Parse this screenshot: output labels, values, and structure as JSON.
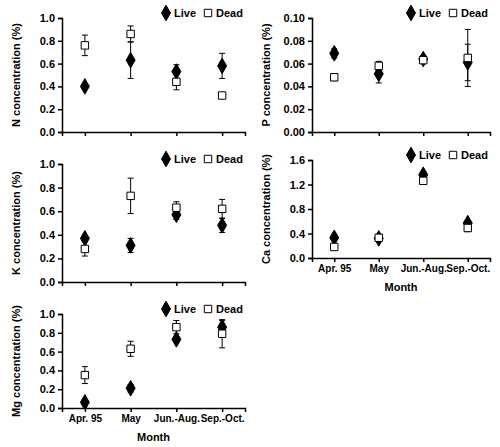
{
  "chart_data": [
    {
      "type": "scatter",
      "y_label": "N concentration (%)",
      "categories": [
        "Apr. 95",
        "May",
        "Jun.-Aug.",
        "Sep.-Oct."
      ],
      "ylim": [
        0,
        1.0
      ],
      "yticks": [
        {
          "value": 0,
          "label": "0.0"
        },
        0.2,
        0.4,
        0.6,
        0.8,
        {
          "value": 1.0,
          "label": "1.0"
        }
      ],
      "tick_labels": "y",
      "legend": "top-right",
      "series": [
        {
          "name": "Live",
          "color": "#000000",
          "marker": "diamond",
          "values": [
            0.4,
            0.63,
            0.53,
            0.58
          ],
          "errors": [
            0.01,
            0.16,
            0.06,
            0.11
          ]
        },
        {
          "name": "Dead",
          "color": "#000000",
          "marker": "square-open",
          "values": [
            0.76,
            0.86,
            0.44,
            0.32
          ],
          "errors": [
            0.09,
            0.07,
            0.07,
            0.02
          ]
        }
      ]
    },
    {
      "type": "scatter",
      "y_label": "P concentration (%)",
      "categories": [
        "Apr. 95",
        "May",
        "Jun.-Aug.",
        "Sep.-Oct."
      ],
      "ylim": [
        0,
        0.1
      ],
      "yticks": [
        {
          "value": 0,
          "label": "0.00"
        },
        0.02,
        0.04,
        0.06,
        0.08,
        {
          "value": 0.1,
          "label": "0.10"
        }
      ],
      "tick_labels": "y",
      "legend": "top-right",
      "series": [
        {
          "name": "Live",
          "color": "#000000",
          "marker": "diamond",
          "values": [
            0.069,
            0.051,
            0.064,
            0.061
          ],
          "errors": [
            0.004,
            0.008,
            0.003,
            0.016
          ]
        },
        {
          "name": "Dead",
          "color": "#000000",
          "marker": "square-open",
          "values": [
            0.048,
            0.058,
            0.063,
            0.065
          ],
          "errors": [
            0.003,
            0.004,
            0.002,
            0.025
          ]
        }
      ]
    },
    {
      "type": "scatter",
      "y_label": "K concentration (%)",
      "categories": [
        "Apr. 95",
        "May",
        "Jun.-Aug.",
        "Sep.-Oct."
      ],
      "ylim": [
        0,
        1.0
      ],
      "yticks": [
        {
          "value": 0,
          "label": "0.0"
        },
        0.2,
        0.4,
        0.6,
        0.8,
        {
          "value": 1.0,
          "label": "1.0"
        }
      ],
      "tick_labels": "y",
      "legend": "top-right",
      "series": [
        {
          "name": "Live",
          "color": "#000000",
          "marker": "diamond",
          "values": [
            0.37,
            0.31,
            0.57,
            0.48
          ],
          "errors": [
            0.01,
            0.06,
            0.04,
            0.06
          ]
        },
        {
          "name": "Dead",
          "color": "#000000",
          "marker": "square-open",
          "values": [
            0.28,
            0.73,
            0.63,
            0.62
          ],
          "errors": [
            0.06,
            0.15,
            0.05,
            0.08
          ]
        }
      ]
    },
    {
      "type": "scatter",
      "y_label": "Ca concentration (%)",
      "x_label": "Month",
      "categories": [
        "Apr. 95",
        "May",
        "Jun.-Aug.",
        "Sep.-Oct."
      ],
      "ylim": [
        0,
        1.6
      ],
      "yticks": [
        {
          "value": 0,
          "label": "0.0"
        },
        0.4,
        0.8,
        1.2,
        1.6
      ],
      "legend": "top-right",
      "series": [
        {
          "name": "Live",
          "color": "#000000",
          "marker": "diamond",
          "values": [
            0.33,
            0.32,
            1.36,
            0.57
          ],
          "errors": [
            0.01,
            0.04,
            0.02,
            0.03
          ]
        },
        {
          "name": "Dead",
          "color": "#000000",
          "marker": "square-open",
          "values": [
            0.18,
            0.33,
            1.26,
            0.49
          ],
          "errors": [
            0.04,
            0.03,
            0.03,
            0.06
          ]
        }
      ]
    },
    {
      "type": "scatter",
      "y_label": "Mg concentration (%)",
      "x_label": "Month",
      "categories": [
        "Apr. 95",
        "May",
        "Jun.-Aug.",
        "Sep.-Oct."
      ],
      "ylim": [
        0,
        1.0
      ],
      "yticks": [
        {
          "value": 0,
          "label": "0.0"
        },
        0.2,
        0.4,
        0.6,
        0.8,
        {
          "value": 1.0,
          "label": "1.0"
        }
      ],
      "legend": "top-right",
      "series": [
        {
          "name": "Live",
          "color": "#000000",
          "marker": "diamond",
          "values": [
            0.06,
            0.21,
            0.73,
            0.86
          ],
          "errors": [
            0.01,
            0.04,
            0.03,
            0.07
          ]
        },
        {
          "name": "Dead",
          "color": "#000000",
          "marker": "square-open",
          "values": [
            0.35,
            0.63,
            0.86,
            0.79
          ],
          "errors": [
            0.09,
            0.08,
            0.07,
            0.15
          ]
        }
      ]
    }
  ]
}
